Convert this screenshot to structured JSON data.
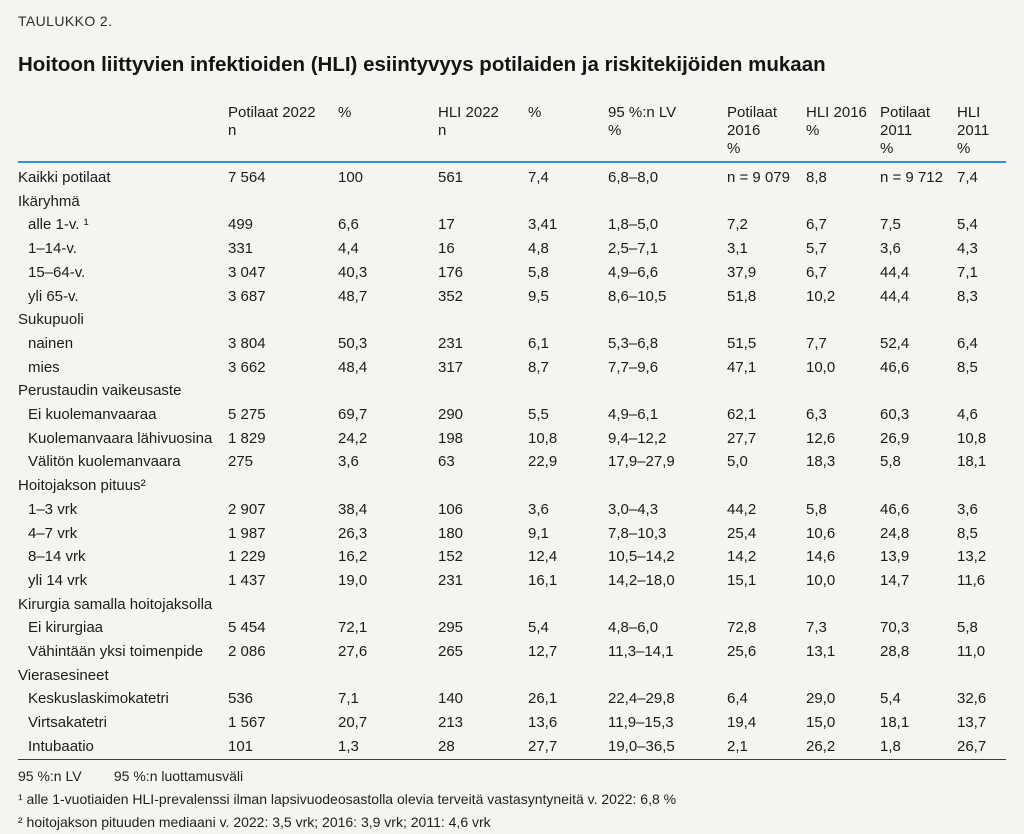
{
  "kicker": "TAULUKKO 2.",
  "title": "Hoitoon liittyvien infektioiden (HLI) esiintyvyys potilaiden ja riskitekijöiden mukaan",
  "colors": {
    "background": "#f6f4f0",
    "accent": "#1f9ad2",
    "rule": "#3c3c3c",
    "text": "#1c1c1c"
  },
  "chart_data": {
    "type": "table",
    "title": "Hoitoon liittyvien infektioiden (HLI) esiintyvyys potilaiden ja riskitekijöiden mukaan",
    "columns": [
      "",
      "Potilaat 2022 n",
      "%",
      "HLI 2022 n",
      "%",
      "95 %:n LV %",
      "Potilaat 2016 %",
      "HLI 2016 %",
      "Potilaat 2011 %",
      "HLI 2011 %"
    ]
  },
  "table": {
    "columns": [
      [
        ""
      ],
      [
        "Potilaat 2022",
        "n"
      ],
      [
        "%"
      ],
      [
        "HLI 2022",
        "n"
      ],
      [
        "%"
      ],
      [
        "95 %:n LV",
        "%"
      ],
      [
        "Potilaat",
        "2016",
        "%"
      ],
      [
        "HLI 2016",
        "%"
      ],
      [
        "Potilaat",
        "2011",
        "%"
      ],
      [
        "HLI",
        "2011",
        "%"
      ]
    ],
    "rows": [
      {
        "label": "Kaikki potilaat",
        "indent": false,
        "section": false,
        "cells": [
          "7 564",
          "100",
          "561",
          "7,4",
          "6,8–8,0",
          "n = 9 079",
          "8,8",
          "n = 9 712",
          "7,4"
        ]
      },
      {
        "label": "Ikäryhmä",
        "indent": false,
        "section": true,
        "cells": []
      },
      {
        "label": "alle 1-v. ¹",
        "indent": true,
        "section": false,
        "cells": [
          "499",
          "6,6",
          "17",
          "3,41",
          "1,8–5,0",
          "7,2",
          "6,7",
          "7,5",
          "5,4"
        ]
      },
      {
        "label": "1–14-v.",
        "indent": true,
        "section": false,
        "cells": [
          "331",
          "4,4",
          "16",
          "4,8",
          "2,5–7,1",
          "3,1",
          "5,7",
          "3,6",
          "4,3"
        ]
      },
      {
        "label": "15–64-v.",
        "indent": true,
        "section": false,
        "cells": [
          "3 047",
          "40,3",
          "176",
          "5,8",
          "4,9–6,6",
          "37,9",
          "6,7",
          "44,4",
          "7,1"
        ]
      },
      {
        "label": "yli 65-v.",
        "indent": true,
        "section": false,
        "cells": [
          "3 687",
          "48,7",
          "352",
          "9,5",
          "8,6–10,5",
          "51,8",
          "10,2",
          "44,4",
          "8,3"
        ]
      },
      {
        "label": "Sukupuoli",
        "indent": false,
        "section": true,
        "cells": []
      },
      {
        "label": "nainen",
        "indent": true,
        "section": false,
        "cells": [
          "3 804",
          "50,3",
          "231",
          "6,1",
          "5,3–6,8",
          "51,5",
          "7,7",
          "52,4",
          "6,4"
        ]
      },
      {
        "label": "mies",
        "indent": true,
        "section": false,
        "cells": [
          "3 662",
          "48,4",
          "317",
          "8,7",
          "7,7–9,6",
          "47,1",
          "10,0",
          "46,6",
          "8,5"
        ]
      },
      {
        "label": "Perustaudin vaikeusaste",
        "indent": false,
        "section": true,
        "cells": []
      },
      {
        "label": "Ei kuolemanvaaraa",
        "indent": true,
        "section": false,
        "cells": [
          "5 275",
          "69,7",
          "290",
          "5,5",
          "4,9–6,1",
          "62,1",
          "6,3",
          "60,3",
          "4,6"
        ]
      },
      {
        "label": "Kuolemanvaara lähivuosina",
        "indent": true,
        "section": false,
        "cells": [
          "1 829",
          "24,2",
          "198",
          "10,8",
          "9,4–12,2",
          "27,7",
          "12,6",
          "26,9",
          "10,8"
        ]
      },
      {
        "label": "Välitön kuolemanvaara",
        "indent": true,
        "section": false,
        "cells": [
          "275",
          "3,6",
          "63",
          "22,9",
          "17,9–27,9",
          "5,0",
          "18,3",
          "5,8",
          "18,1"
        ]
      },
      {
        "label": "Hoitojakson pituus²",
        "indent": false,
        "section": true,
        "cells": []
      },
      {
        "label": "1–3 vrk",
        "indent": true,
        "section": false,
        "cells": [
          "2 907",
          "38,4",
          "106",
          "3,6",
          "3,0–4,3",
          "44,2",
          "5,8",
          "46,6",
          "3,6"
        ]
      },
      {
        "label": "4–7 vrk",
        "indent": true,
        "section": false,
        "cells": [
          "1 987",
          "26,3",
          "180",
          "9,1",
          "7,8–10,3",
          "25,4",
          "10,6",
          "24,8",
          "8,5"
        ]
      },
      {
        "label": "8–14 vrk",
        "indent": true,
        "section": false,
        "cells": [
          "1 229",
          "16,2",
          "152",
          "12,4",
          "10,5–14,2",
          "14,2",
          "14,6",
          "13,9",
          "13,2"
        ]
      },
      {
        "label": "yli 14 vrk",
        "indent": true,
        "section": false,
        "cells": [
          "1 437",
          "19,0",
          "231",
          "16,1",
          "14,2–18,0",
          "15,1",
          "10,0",
          "14,7",
          "11,6"
        ]
      },
      {
        "label": "Kirurgia samalla hoitojaksolla",
        "indent": false,
        "section": true,
        "cells": []
      },
      {
        "label": "Ei kirurgiaa",
        "indent": true,
        "section": false,
        "cells": [
          "5 454",
          "72,1",
          "295",
          "5,4",
          "4,8–6,0",
          "72,8",
          "7,3",
          "70,3",
          "5,8"
        ]
      },
      {
        "label": "Vähintään yksi toimenpide",
        "indent": true,
        "section": false,
        "cells": [
          "2 086",
          "27,6",
          "265",
          "12,7",
          "11,3–14,1",
          "25,6",
          "13,1",
          "28,8",
          "11,0"
        ]
      },
      {
        "label": "Vierasesineet",
        "indent": false,
        "section": true,
        "cells": []
      },
      {
        "label": "Keskuslaskimokatetri",
        "indent": true,
        "section": false,
        "cells": [
          "536",
          "7,1",
          "140",
          "26,1",
          "22,4–29,8",
          "6,4",
          "29,0",
          "5,4",
          "32,6"
        ]
      },
      {
        "label": "Virtsakatetri",
        "indent": true,
        "section": false,
        "cells": [
          "1 567",
          "20,7",
          "213",
          "13,6",
          "11,9–15,3",
          "19,4",
          "15,0",
          "18,1",
          "13,7"
        ]
      },
      {
        "label": "Intubaatio",
        "indent": true,
        "section": false,
        "cells": [
          "101",
          "1,3",
          "28",
          "27,7",
          "19,0–36,5",
          "2,1",
          "26,2",
          "1,8",
          "26,7"
        ]
      }
    ]
  },
  "footnotes": {
    "abbreviation": {
      "term": "95 %:n LV",
      "definition": "95 %:n luottamusväli"
    },
    "note1": "¹ alle 1-vuotiaiden HLI-prevalenssi ilman lapsivuodeosastolla olevia terveitä vastasyntyneitä v. 2022: 6,8 %",
    "note2": "² hoitojakson pituuden mediaani v. 2022: 3,5 vrk; 2016: 3,9 vrk; 2011: 4,6 vrk"
  }
}
